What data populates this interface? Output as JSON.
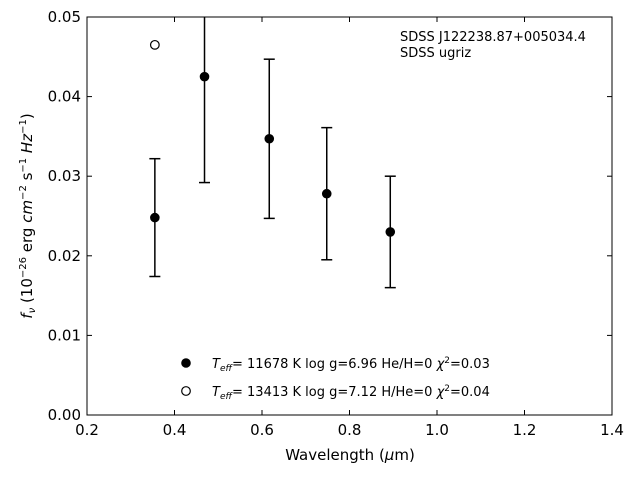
{
  "chart_data": {
    "type": "scatter",
    "annotation_lines": [
      "SDSS J122238.87+005034.4",
      "SDSS ugriz"
    ],
    "xlabel": {
      "pre": "Wavelength (",
      "mu": "μ",
      "post": "m)"
    },
    "ylabel": {
      "f": "f",
      "nu": "ν",
      "a": " (10",
      "e26": "−26",
      "b": " erg ",
      "cm": "cm",
      "e2": "−2",
      "s": " s",
      "e1": "−1",
      "hz": " Hz",
      "e1b": "−1",
      "close": ")"
    },
    "xlim": [
      0.2,
      1.4
    ],
    "ylim": [
      0.0,
      0.05
    ],
    "xticks": [
      0.2,
      0.4,
      0.6,
      0.8,
      1.0,
      1.2,
      1.4
    ],
    "xtick_labels": [
      "0.2",
      "0.4",
      "0.6",
      "0.8",
      "1.0",
      "1.2",
      "1.4"
    ],
    "yticks": [
      0.0,
      0.01,
      0.02,
      0.03,
      0.04,
      0.05
    ],
    "ytick_labels": [
      "0.00",
      "0.01",
      "0.02",
      "0.03",
      "0.04",
      "0.05"
    ],
    "grid": false,
    "legend_position": "bottom-center",
    "series": [
      {
        "marker": "filled-circle",
        "color": "#000000",
        "error_bars": true,
        "x": [
          0.3551,
          0.4686,
          0.6166,
          0.748,
          0.8932
        ],
        "y": [
          0.0248,
          0.0425,
          0.0347,
          0.0278,
          0.023
        ],
        "yerr": [
          0.0074,
          0.0133,
          0.01,
          0.0083,
          0.007
        ],
        "legend": {
          "teff": "T",
          "eff": "eff",
          "main": "= 11678 K  log g=6.96  He/H=0  ",
          "chi": "χ",
          "two": "2",
          "end": "=0.03"
        }
      },
      {
        "marker": "open-circle",
        "color": "#000000",
        "error_bars": false,
        "x": [
          0.3551
        ],
        "y": [
          0.0465
        ],
        "legend": {
          "teff": "T",
          "eff": "eff",
          "main": "= 13413 K  log g=7.12  H/He=0  ",
          "chi": "χ",
          "two": "2",
          "end": "=0.04"
        }
      }
    ]
  }
}
